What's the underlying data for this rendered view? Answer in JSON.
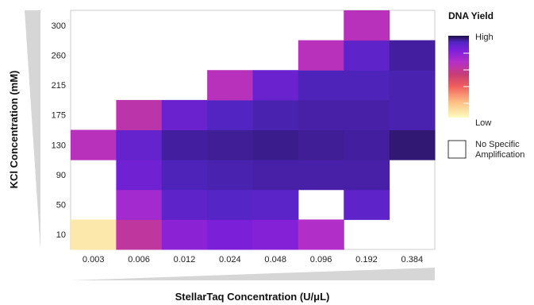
{
  "chart_data": {
    "type": "heatmap",
    "xlabel": "StellarTaq Concentration (U/μL)",
    "ylabel": "KCl Concentration (mM)",
    "x_categories": [
      "0.003",
      "0.006",
      "0.012",
      "0.024",
      "0.048",
      "0.096",
      "0.192",
      "0.384"
    ],
    "y_categories": [
      "10",
      "50",
      "90",
      "130",
      "175",
      "215",
      "260",
      "300"
    ],
    "values": [
      [
        0.05,
        0.5,
        0.68,
        0.72,
        0.7,
        0.58,
        null,
        null
      ],
      [
        null,
        0.62,
        0.82,
        0.85,
        0.83,
        null,
        0.82,
        null
      ],
      [
        null,
        0.76,
        0.87,
        0.88,
        0.89,
        0.89,
        0.89,
        null
      ],
      [
        0.55,
        0.8,
        0.9,
        0.91,
        0.92,
        0.91,
        0.9,
        0.95
      ],
      [
        null,
        0.52,
        0.78,
        0.86,
        0.88,
        0.89,
        0.89,
        0.88
      ],
      [
        null,
        null,
        null,
        0.55,
        0.78,
        0.87,
        0.87,
        0.88
      ],
      [
        null,
        null,
        null,
        null,
        null,
        0.55,
        0.82,
        0.9
      ],
      [
        null,
        null,
        null,
        null,
        null,
        null,
        0.55,
        null
      ]
    ],
    "null_meaning": "No Specific Amplification",
    "legend": {
      "title": "DNA Yield",
      "high_label": "High",
      "low_label": "Low",
      "none_label_line1": "No Specific",
      "none_label_line2": "Amplification",
      "none_color": "#ffffff"
    },
    "colormap": [
      "#fcfdbf",
      "#fec287",
      "#f1605d",
      "#c83e73",
      "#b52fc8",
      "#7e1fd9",
      "#5325c4",
      "#1d1147"
    ]
  }
}
